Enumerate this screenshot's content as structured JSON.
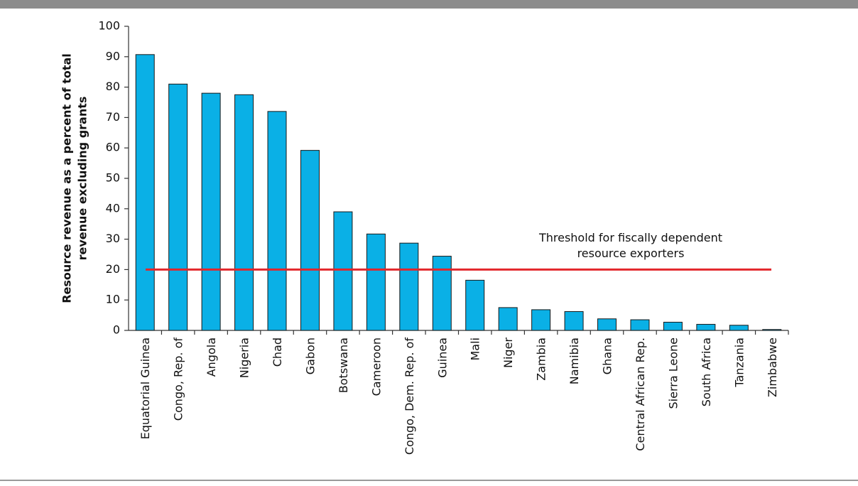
{
  "chart_data": {
    "type": "bar",
    "ylabel": [
      "Resource revenue as a percent of total",
      "revenue excluding grants"
    ],
    "categories": [
      "Equatorial Guinea",
      "Congo, Rep. of",
      "Angola",
      "Nigeria",
      "Chad",
      "Gabon",
      "Botswana",
      "Cameroon",
      "Congo, Dem. Rep. of",
      "Guinea",
      "Mali",
      "Niger",
      "Zambia",
      "Namibia",
      "Ghana",
      "Central African Rep.",
      "Sierra Leone",
      "South Africa",
      "Tanzania",
      "Zimbabwe"
    ],
    "values": [
      90.7,
      81,
      78,
      77.5,
      72,
      59.2,
      39,
      31.7,
      28.7,
      24.4,
      16.5,
      7.5,
      6.8,
      6.2,
      3.8,
      3.5,
      2.7,
      2,
      1.7,
      0.3
    ],
    "color": "#0ab0e6",
    "ylim": [
      0,
      100
    ],
    "yticks": [
      0,
      10,
      20,
      30,
      40,
      50,
      60,
      70,
      80,
      90,
      100
    ],
    "threshold": 20,
    "threshold_color": "#e3262b",
    "annotation": [
      "Threshold for fiscally dependent",
      "resource exporters"
    ]
  }
}
